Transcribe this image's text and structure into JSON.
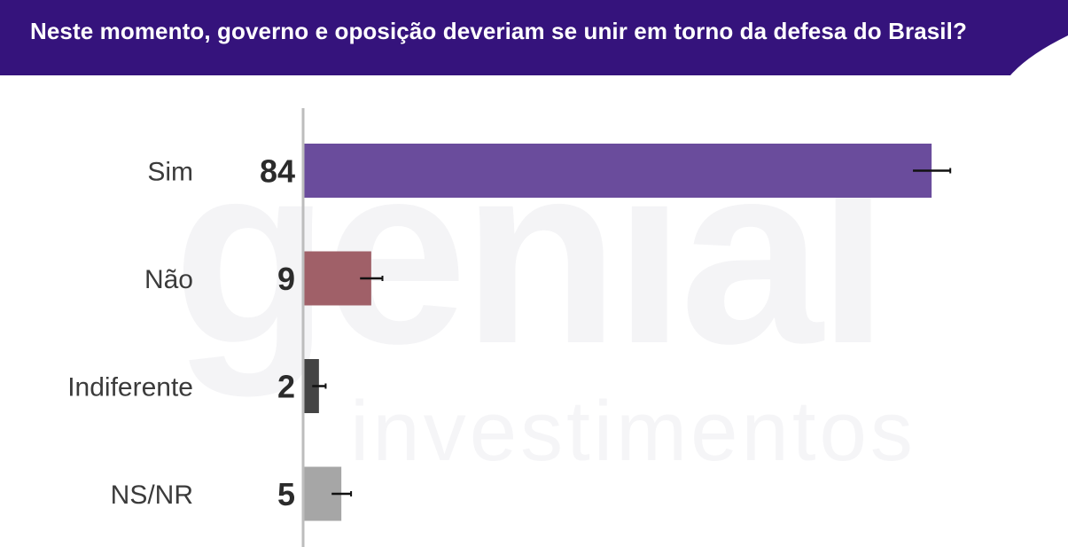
{
  "header": {
    "title": "Neste momento, governo e oposição deveriam se unir em torno da defesa do Brasil?",
    "background_color": "#35137c"
  },
  "watermark": {
    "big": "genial",
    "small": "investimentos"
  },
  "chart_data": {
    "type": "bar",
    "orientation": "horizontal",
    "categories": [
      "Sim",
      "Não",
      "Indiferente",
      "NS/NR"
    ],
    "values": [
      84,
      9,
      2,
      5
    ],
    "error_bars": [
      2.5,
      1.5,
      0.9,
      1.3
    ],
    "colors": [
      "#6a4c9c",
      "#a06068",
      "#444444",
      "#a6a6a6"
    ],
    "title": "Neste momento, governo e oposição deveriam se unir em torno da defesa do Brasil?",
    "xlabel": "",
    "ylabel": "",
    "xlim": [
      0,
      100
    ],
    "grid": false,
    "legend": "none"
  }
}
